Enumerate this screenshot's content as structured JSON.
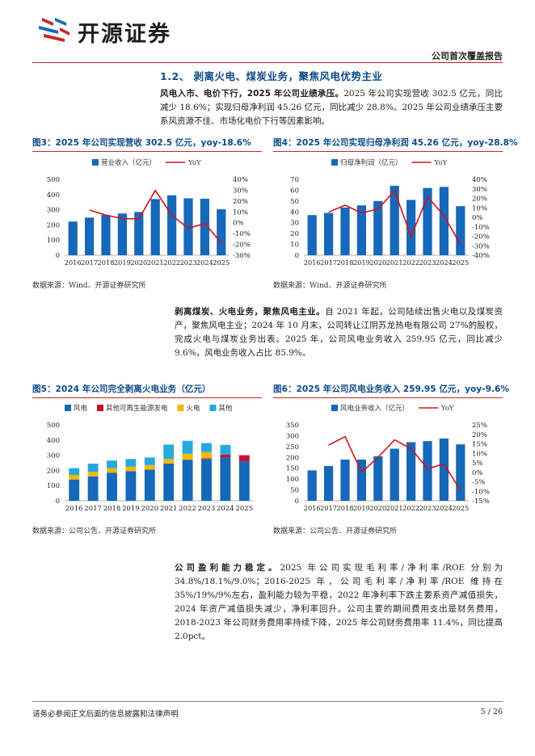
{
  "header": {
    "logo_text": "开源证券",
    "report_type": "公司首次覆盖报告"
  },
  "section": {
    "title": "1.2、 剥离火电、煤炭业务，聚焦风电优势主业"
  },
  "para1": {
    "bold": "风电入市、电价下行，2025 年公司业绩承压。",
    "text": "2025 年公司实现营收 302.5 亿元，同比减少 18.6%；实现归母净利润 45.26 亿元，同比减少 28.8%。2025 年公司业绩承压主要系风资源不佳、市场化电价下行等因素影响。"
  },
  "para2": {
    "bold": "剥离煤炭、火电业务，聚焦风电主业。",
    "text": "自 2021 年起，公司陆续出售火电以及煤炭资产，聚焦风电主业；2024 年 10 月末，公司转让江阴苏龙热电有限公司 27%的股权，完成火电与煤炭业务出表。2025 年，公司风电业务收入 259.95 亿元，同比减少 9.6%，风电业务收入占比 85.9%。"
  },
  "para3": {
    "bold": "公司盈利能力稳定。",
    "text": "2025 年公司实现毛利率/净利率/ROE 分别为 34.8%/18.1%/9.0%；2016-2025 年，公司毛利率/净利率/ROE 维持在 35%/19%/9%左右，盈利能力较为平稳，2022 年净利率下跌主要系资产减值损失，2024 年资产减值损失减少，净利率回升。公司主要的期间费用支出是财务费用，2018-2023 年公司财务费用率持续下降，2025 年公司财务费用率 11.4%，同比提高 2.0pct。"
  },
  "figures": {
    "fig3": {
      "title": "图3：2025 年公司实现营收 302.5 亿元，yoy-18.6%",
      "source": "数据来源：Wind、开源证券研究所"
    },
    "fig4": {
      "title": "图4：2025 年公司实现归母净利润 45.26 亿元，yoy-28.8%",
      "source": "数据来源：Wind、开源证券研究所"
    },
    "fig5": {
      "title": "图5：2024 年公司完全剥离火电业务（亿元）",
      "source": "数据来源：公司公告、开源证券研究所"
    },
    "fig6": {
      "title": "图6：2025 年公司风电业务收入 259.95 亿元，yoy-9.6%",
      "source": "数据来源：公司公告、开源证券研究所"
    }
  },
  "footer": {
    "disclaimer": "请务必参阅正文后面的信息披露和法律声明",
    "page": "5 / 26"
  },
  "colors": {
    "bar": "#1668b8",
    "line": "#d8101c",
    "wind": "#1668b8",
    "other_renew": "#c8102e",
    "thermal": "#f5b800",
    "others": "#27a8e0",
    "accent": "#c62828",
    "title": "#0d4a8a"
  },
  "chart_data": [
    {
      "id": "fig3",
      "type": "bar",
      "categories": [
        "2016",
        "2017",
        "2018",
        "2019",
        "2020",
        "2021",
        "2022",
        "2023",
        "2024",
        "2025"
      ],
      "series": [
        {
          "name": "营业收入（亿元）",
          "type": "bar",
          "axis": "left",
          "values": [
            222,
            248,
            265,
            275,
            285,
            370,
            395,
            375,
            372,
            302.5
          ]
        },
        {
          "name": "YoY",
          "type": "line",
          "axis": "right",
          "values": [
            null,
            11.7,
            6.9,
            3.8,
            3.6,
            29.8,
            6.8,
            -5.1,
            -0.8,
            -18.6
          ]
        }
      ],
      "left_axis": {
        "min": 0,
        "max": 500,
        "ticks": [
          0,
          100,
          200,
          300,
          400,
          500
        ]
      },
      "right_axis": {
        "min": -30,
        "max": 40,
        "ticks": [
          "-30%",
          "-20%",
          "-10%",
          "0%",
          "10%",
          "20%",
          "30%",
          "40%"
        ]
      },
      "legend": "top"
    },
    {
      "id": "fig4",
      "type": "bar",
      "categories": [
        "2016",
        "2017",
        "2018",
        "2019",
        "2020",
        "2021",
        "2022",
        "2023",
        "2024",
        "2025"
      ],
      "series": [
        {
          "name": "归母净利润（亿元）",
          "type": "bar",
          "axis": "left",
          "values": [
            37,
            39,
            44,
            46,
            50,
            64,
            51,
            62,
            63,
            45.26
          ]
        },
        {
          "name": "YoY",
          "type": "line",
          "axis": "right",
          "values": [
            null,
            5.4,
            12.8,
            4.5,
            8.7,
            28.0,
            -20.3,
            21.6,
            1.6,
            -28.8
          ]
        }
      ],
      "left_axis": {
        "min": 0,
        "max": 70,
        "ticks": [
          0,
          10,
          20,
          30,
          40,
          50,
          60,
          70
        ]
      },
      "right_axis": {
        "min": -40,
        "max": 40,
        "ticks": [
          "-40%",
          "-30%",
          "-20%",
          "-10%",
          "0%",
          "10%",
          "20%",
          "30%",
          "40%"
        ]
      },
      "legend": "top"
    },
    {
      "id": "fig5",
      "type": "stacked_bar",
      "categories": [
        "2016",
        "2017",
        "2018",
        "2019",
        "2020",
        "2021",
        "2022",
        "2023",
        "2024",
        "2025"
      ],
      "series": [
        {
          "name": "风电",
          "values": [
            140,
            160,
            185,
            195,
            205,
            245,
            270,
            275,
            285,
            260
          ]
        },
        {
          "name": "其他可再生能源发电",
          "values": [
            0,
            0,
            0,
            0,
            0,
            0,
            0,
            5,
            18,
            40
          ]
        },
        {
          "name": "火电",
          "values": [
            30,
            30,
            30,
            30,
            30,
            30,
            40,
            40,
            0,
            0
          ]
        },
        {
          "name": "其他",
          "values": [
            45,
            55,
            50,
            50,
            50,
            95,
            85,
            60,
            65,
            0
          ]
        }
      ],
      "left_axis": {
        "min": 0,
        "max": 500,
        "ticks": [
          0,
          100,
          200,
          300,
          400,
          500
        ]
      },
      "legend": "top"
    },
    {
      "id": "fig6",
      "type": "bar",
      "categories": [
        "2016",
        "2017",
        "2018",
        "2019",
        "2020",
        "2021",
        "2022",
        "2023",
        "2024",
        "2025"
      ],
      "series": [
        {
          "name": "风电业务收入（亿元）",
          "type": "bar",
          "axis": "left",
          "values": [
            140,
            160,
            190,
            190,
            205,
            240,
            270,
            275,
            287,
            259.95
          ]
        },
        {
          "name": "YoY",
          "type": "line",
          "axis": "right",
          "values": [
            null,
            14.3,
            18.8,
            0.0,
            7.9,
            17.1,
            12.5,
            1.9,
            4.4,
            -9.6
          ]
        }
      ],
      "left_axis": {
        "min": 0,
        "max": 350,
        "ticks": [
          0,
          50,
          100,
          150,
          200,
          250,
          300,
          350
        ]
      },
      "right_axis": {
        "min": -15,
        "max": 25,
        "ticks": [
          "-15%",
          "-10%",
          "-5%",
          "0%",
          "5%",
          "10%",
          "15%",
          "20%",
          "25%"
        ]
      },
      "legend": "top"
    }
  ]
}
